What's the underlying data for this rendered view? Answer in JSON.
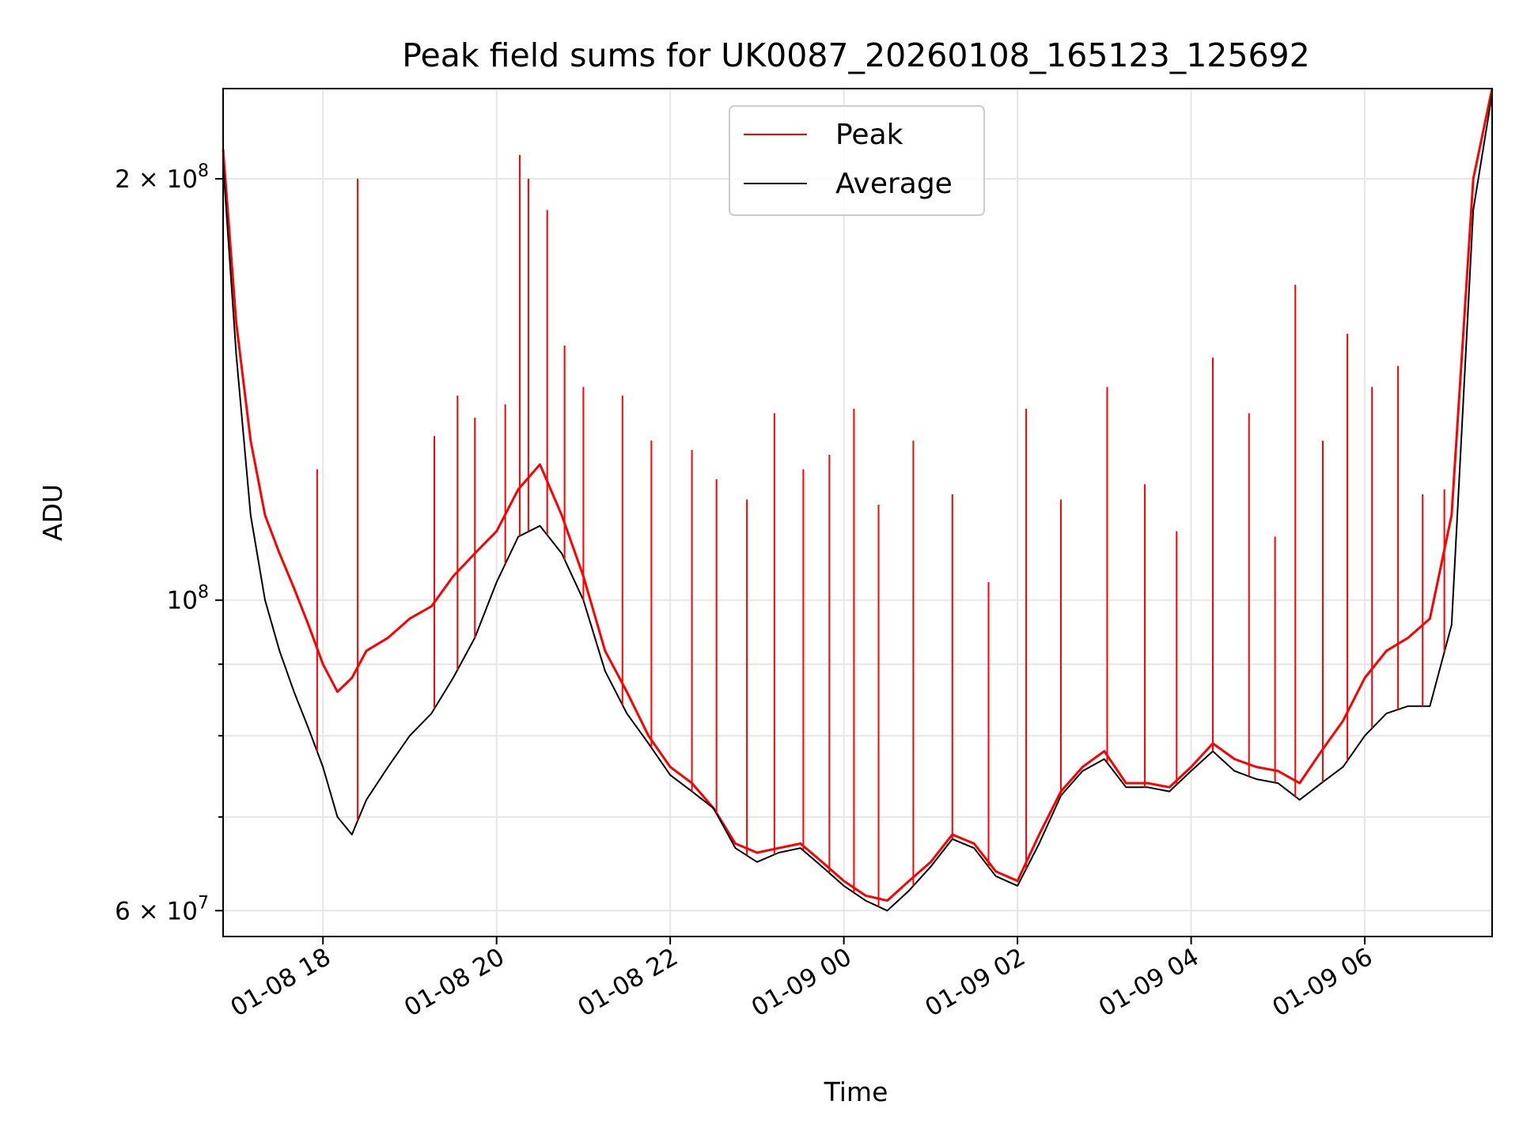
{
  "chart_data": {
    "type": "line",
    "title": "Peak field sums for UK0087_20260108_165123_125692",
    "xlabel": "Time",
    "ylabel": "ADU",
    "yscale": "log",
    "xlim": [
      "2026-01-08 16:51",
      "2026-01-09 07:28"
    ],
    "ylim": [
      57500000,
      232000000
    ],
    "grid": true,
    "legend_position": "top-center",
    "x_tick_values": [
      "2026-01-08 18:00",
      "2026-01-08 20:00",
      "2026-01-08 22:00",
      "2026-01-09 00:00",
      "2026-01-09 02:00",
      "2026-01-09 04:00",
      "2026-01-09 06:00"
    ],
    "x_tick_labels": [
      "01-08 18",
      "01-08 20",
      "01-08 22",
      "01-09 00",
      "01-09 02",
      "01-09 04",
      "01-09 06"
    ],
    "y_tick_values": [
      60000000,
      100000000,
      200000000
    ],
    "y_tick_labels": [
      {
        "mantissa": "6",
        "sep": " × ",
        "base": "10",
        "exp": "7"
      },
      {
        "mantissa": "",
        "sep": "",
        "base": "10",
        "exp": "8"
      },
      {
        "mantissa": "2",
        "sep": " × ",
        "base": "10",
        "exp": "8"
      }
    ],
    "y_minor_tick_values": [
      70000000,
      80000000,
      90000000
    ],
    "series": [
      {
        "name": "Peak",
        "color": "#ff0000",
        "x": [
          "2026-01-08 16:51",
          "2026-01-08 17:00",
          "2026-01-08 17:10",
          "2026-01-08 17:20",
          "2026-01-08 17:30",
          "2026-01-08 17:40",
          "2026-01-08 17:50",
          "2026-01-08 18:00",
          "2026-01-08 18:10",
          "2026-01-08 18:20",
          "2026-01-08 18:30",
          "2026-01-08 18:45",
          "2026-01-08 19:00",
          "2026-01-08 19:15",
          "2026-01-08 19:30",
          "2026-01-08 19:45",
          "2026-01-08 20:00",
          "2026-01-08 20:15",
          "2026-01-08 20:30",
          "2026-01-08 20:45",
          "2026-01-08 21:00",
          "2026-01-08 21:15",
          "2026-01-08 21:30",
          "2026-01-08 21:45",
          "2026-01-08 22:00",
          "2026-01-08 22:15",
          "2026-01-08 22:30",
          "2026-01-08 22:45",
          "2026-01-08 23:00",
          "2026-01-08 23:15",
          "2026-01-08 23:30",
          "2026-01-08 23:45",
          "2026-01-09 00:00",
          "2026-01-09 00:15",
          "2026-01-09 00:30",
          "2026-01-09 00:45",
          "2026-01-09 01:00",
          "2026-01-09 01:15",
          "2026-01-09 01:30",
          "2026-01-09 01:45",
          "2026-01-09 02:00",
          "2026-01-09 02:15",
          "2026-01-09 02:30",
          "2026-01-09 02:45",
          "2026-01-09 03:00",
          "2026-01-09 03:15",
          "2026-01-09 03:30",
          "2026-01-09 03:45",
          "2026-01-09 04:00",
          "2026-01-09 04:15",
          "2026-01-09 04:30",
          "2026-01-09 04:45",
          "2026-01-09 05:00",
          "2026-01-09 05:15",
          "2026-01-09 05:30",
          "2026-01-09 05:45",
          "2026-01-09 06:00",
          "2026-01-09 06:15",
          "2026-01-09 06:30",
          "2026-01-09 06:45",
          "2026-01-09 07:00",
          "2026-01-09 07:15",
          "2026-01-09 07:28"
        ],
        "values": [
          210000000,
          158000000,
          130000000,
          115000000,
          108000000,
          102000000,
          96000000,
          90000000,
          86000000,
          88000000,
          92000000,
          94000000,
          97000000,
          99000000,
          104000000,
          108000000,
          112000000,
          120000000,
          125000000,
          115000000,
          104000000,
          92000000,
          86000000,
          80000000,
          76000000,
          74000000,
          71000000,
          67000000,
          66000000,
          66500000,
          67000000,
          65000000,
          63000000,
          61500000,
          61000000,
          63000000,
          65000000,
          68000000,
          67000000,
          64000000,
          63000000,
          68000000,
          73000000,
          76000000,
          78000000,
          74000000,
          74000000,
          73500000,
          76000000,
          79000000,
          77000000,
          76000000,
          75500000,
          74000000,
          78000000,
          82000000,
          88000000,
          92000000,
          94000000,
          97000000,
          115000000,
          200000000,
          232000000
        ]
      },
      {
        "name": "Average",
        "color": "#000000",
        "x": [
          "2026-01-08 16:51",
          "2026-01-08 17:00",
          "2026-01-08 17:10",
          "2026-01-08 17:20",
          "2026-01-08 17:30",
          "2026-01-08 17:40",
          "2026-01-08 17:50",
          "2026-01-08 18:00",
          "2026-01-08 18:10",
          "2026-01-08 18:20",
          "2026-01-08 18:30",
          "2026-01-08 18:45",
          "2026-01-08 19:00",
          "2026-01-08 19:15",
          "2026-01-08 19:30",
          "2026-01-08 19:45",
          "2026-01-08 20:00",
          "2026-01-08 20:15",
          "2026-01-08 20:30",
          "2026-01-08 20:45",
          "2026-01-08 21:00",
          "2026-01-08 21:15",
          "2026-01-08 21:30",
          "2026-01-08 21:45",
          "2026-01-08 22:00",
          "2026-01-08 22:15",
          "2026-01-08 22:30",
          "2026-01-08 22:45",
          "2026-01-08 23:00",
          "2026-01-08 23:15",
          "2026-01-08 23:30",
          "2026-01-08 23:45",
          "2026-01-09 00:00",
          "2026-01-09 00:15",
          "2026-01-09 00:30",
          "2026-01-09 00:45",
          "2026-01-09 01:00",
          "2026-01-09 01:15",
          "2026-01-09 01:30",
          "2026-01-09 01:45",
          "2026-01-09 02:00",
          "2026-01-09 02:15",
          "2026-01-09 02:30",
          "2026-01-09 02:45",
          "2026-01-09 03:00",
          "2026-01-09 03:15",
          "2026-01-09 03:30",
          "2026-01-09 03:45",
          "2026-01-09 04:00",
          "2026-01-09 04:15",
          "2026-01-09 04:30",
          "2026-01-09 04:45",
          "2026-01-09 05:00",
          "2026-01-09 05:15",
          "2026-01-09 05:30",
          "2026-01-09 05:45",
          "2026-01-09 06:00",
          "2026-01-09 06:15",
          "2026-01-09 06:30",
          "2026-01-09 06:45",
          "2026-01-09 07:00",
          "2026-01-09 07:15",
          "2026-01-09 07:28"
        ],
        "values": [
          205000000,
          150000000,
          115000000,
          100000000,
          92000000,
          86000000,
          81000000,
          76000000,
          70000000,
          68000000,
          72000000,
          76000000,
          80000000,
          83000000,
          88000000,
          94000000,
          103000000,
          111000000,
          113000000,
          108000000,
          100000000,
          89000000,
          83000000,
          79000000,
          75000000,
          73000000,
          71000000,
          66500000,
          65000000,
          66000000,
          66500000,
          64500000,
          62500000,
          61000000,
          60000000,
          62000000,
          64500000,
          67500000,
          66500000,
          63500000,
          62500000,
          67000000,
          72500000,
          75500000,
          77000000,
          73500000,
          73500000,
          73000000,
          75500000,
          78000000,
          75500000,
          74500000,
          74000000,
          72000000,
          74000000,
          76000000,
          80000000,
          83000000,
          84000000,
          84000000,
          96000000,
          190000000,
          230000000
        ]
      }
    ],
    "peak_spikes": {
      "x": [
        "2026-01-08 18:24",
        "2026-01-08 17:56",
        "2026-01-08 19:17",
        "2026-01-08 19:33",
        "2026-01-08 19:45",
        "2026-01-08 20:06",
        "2026-01-08 20:16",
        "2026-01-08 20:22",
        "2026-01-08 20:35",
        "2026-01-08 20:47",
        "2026-01-08 21:00",
        "2026-01-08 21:27",
        "2026-01-08 21:47",
        "2026-01-08 22:15",
        "2026-01-08 22:32",
        "2026-01-08 22:53",
        "2026-01-08 23:12",
        "2026-01-08 23:32",
        "2026-01-08 23:50",
        "2026-01-09 00:07",
        "2026-01-09 00:24",
        "2026-01-09 00:48",
        "2026-01-09 01:15",
        "2026-01-09 01:40",
        "2026-01-09 02:06",
        "2026-01-09 02:30",
        "2026-01-09 03:02",
        "2026-01-09 03:28",
        "2026-01-09 03:50",
        "2026-01-09 04:15",
        "2026-01-09 04:40",
        "2026-01-09 04:58",
        "2026-01-09 05:12",
        "2026-01-09 05:31",
        "2026-01-09 05:48",
        "2026-01-09 06:05",
        "2026-01-09 06:23",
        "2026-01-09 06:40",
        "2026-01-09 06:55"
      ],
      "values": [
        200000000,
        124000000,
        131000000,
        140000000,
        135000000,
        138000000,
        208000000,
        200000000,
        190000000,
        152000000,
        142000000,
        140000000,
        130000000,
        128000000,
        122000000,
        118000000,
        136000000,
        124000000,
        127000000,
        137000000,
        117000000,
        130000000,
        119000000,
        103000000,
        137000000,
        118000000,
        142000000,
        121000000,
        112000000,
        149000000,
        136000000,
        111000000,
        168000000,
        130000000,
        155000000,
        142000000,
        147000000,
        119000000,
        120000000
      ]
    }
  }
}
